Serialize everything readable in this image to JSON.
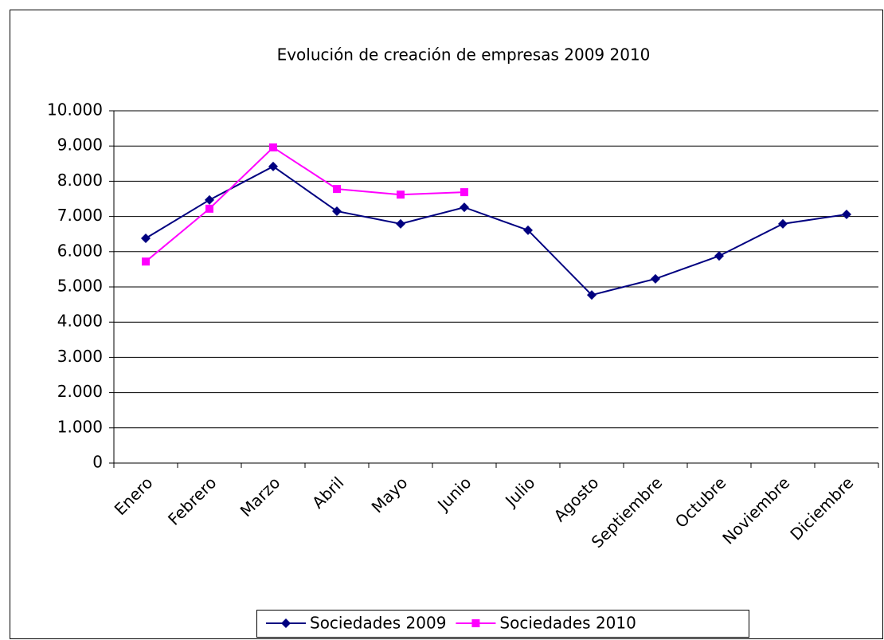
{
  "chart_data": {
    "type": "line",
    "title": "Evolución de creación de empresas 2009 2010",
    "categories": [
      "Enero",
      "Febrero",
      "Marzo",
      "Abril",
      "Mayo",
      "Junio",
      "Julio",
      "Agosto",
      "Septiembre",
      "Octubre",
      "Noviembre",
      "Diciembre"
    ],
    "series": [
      {
        "name": "Sociedades 2009",
        "color": "#000080",
        "marker": "diamond",
        "values": [
          6380,
          7470,
          8420,
          7150,
          6790,
          7260,
          6610,
          4770,
          5230,
          5880,
          6790,
          7060
        ]
      },
      {
        "name": "Sociedades 2010",
        "color": "#ff00ff",
        "marker": "square",
        "values": [
          5720,
          7220,
          8960,
          7780,
          7620,
          7690,
          null,
          null,
          null,
          null,
          null,
          null
        ]
      }
    ],
    "ylim": [
      0,
      10000
    ],
    "yticks": [
      0,
      {
        "value": 1000,
        "label": "1.000"
      },
      {
        "value": 2000,
        "label": "2.000"
      },
      {
        "value": 3000,
        "label": "3.000"
      },
      {
        "value": 4000,
        "label": "4.000"
      },
      {
        "value": 5000,
        "label": "5.000"
      },
      {
        "value": 6000,
        "label": "6.000"
      },
      {
        "value": 7000,
        "label": "7.000"
      },
      {
        "value": 8000,
        "label": "8.000"
      },
      {
        "value": 9000,
        "label": "9.000"
      },
      {
        "value": 10000,
        "label": "10.000"
      }
    ],
    "grid": true,
    "legend": "bottom"
  }
}
